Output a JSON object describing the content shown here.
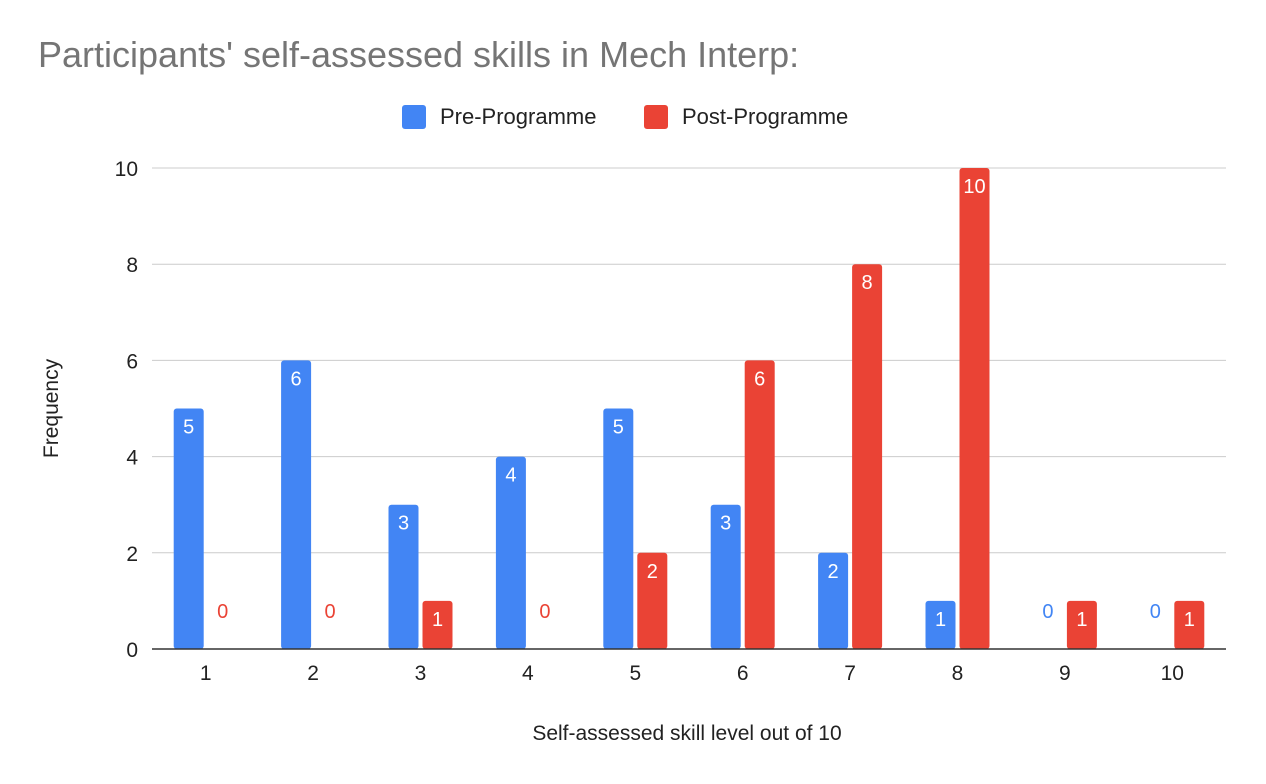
{
  "chart_data": {
    "type": "bar",
    "title": "Participants' self-assessed skills in Mech Interp:",
    "xlabel": "Self-assessed skill level out of 10",
    "ylabel": "Frequency",
    "categories": [
      "1",
      "2",
      "3",
      "4",
      "5",
      "6",
      "7",
      "8",
      "9",
      "10"
    ],
    "series": [
      {
        "name": "Pre-Programme",
        "color": "#4285f4",
        "values": [
          5,
          6,
          3,
          4,
          5,
          3,
          2,
          1,
          0,
          0
        ]
      },
      {
        "name": "Post-Programme",
        "color": "#ea4335",
        "values": [
          0,
          0,
          1,
          0,
          2,
          6,
          8,
          10,
          1,
          1
        ]
      }
    ],
    "ylim": [
      0,
      10
    ],
    "yticks": [
      0,
      2,
      4,
      6,
      8,
      10
    ],
    "grid": true,
    "legend": "top-center"
  }
}
